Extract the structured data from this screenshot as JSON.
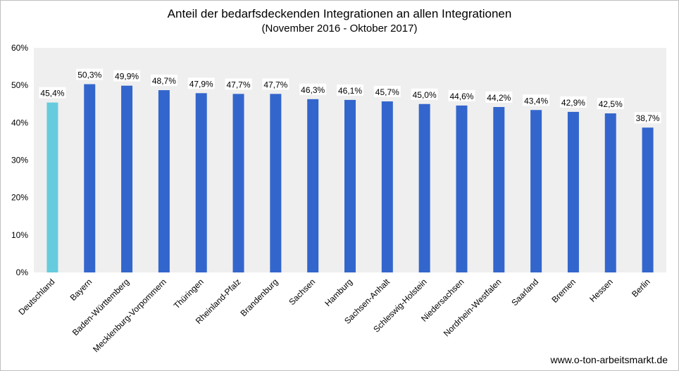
{
  "title": "Anteil der bedarfsdeckenden Integrationen an allen Integrationen",
  "subtitle": "(November 2016 - Oktober 2017)",
  "credit": "www.o-ton-arbeitsmarkt.de",
  "chart_data": {
    "type": "bar",
    "title": "Anteil der bedarfsdeckenden Integrationen an allen Integrationen",
    "subtitle": "(November 2016 - Oktober 2017)",
    "xlabel": "",
    "ylabel": "",
    "ylim": [
      0,
      60
    ],
    "yticks": [
      "0%",
      "10%",
      "20%",
      "30%",
      "40%",
      "50%",
      "60%"
    ],
    "grid": false,
    "legend": "none",
    "categories": [
      "Deutschland",
      "Bayern",
      "Baden-Württemberg",
      "Mecklenburg-Vorpommern",
      "Thüringen",
      "Rheinland-Pfalz",
      "Brandenburg",
      "Sachsen",
      "Hamburg",
      "Sachsen-Anhalt",
      "Schleswig-Holstein",
      "Niedersachsen",
      "Nordrhein-Westfalen",
      "Saarland",
      "Bremen",
      "Hessen",
      "Berlin"
    ],
    "values": [
      45.4,
      50.3,
      49.9,
      48.7,
      47.9,
      47.7,
      47.7,
      46.3,
      46.1,
      45.7,
      45.0,
      44.6,
      44.2,
      43.4,
      42.9,
      42.5,
      38.7
    ],
    "value_labels": [
      "45,4%",
      "50,3%",
      "49,9%",
      "48,7%",
      "47,9%",
      "47,7%",
      "47,7%",
      "46,3%",
      "46,1%",
      "45,7%",
      "45,0%",
      "44,6%",
      "44,2%",
      "43,4%",
      "42,9%",
      "42,5%",
      "38,7%"
    ],
    "colors": {
      "highlight": "#66ccdd",
      "bar": "#3366cc",
      "plot_bg": "#efefef"
    }
  }
}
